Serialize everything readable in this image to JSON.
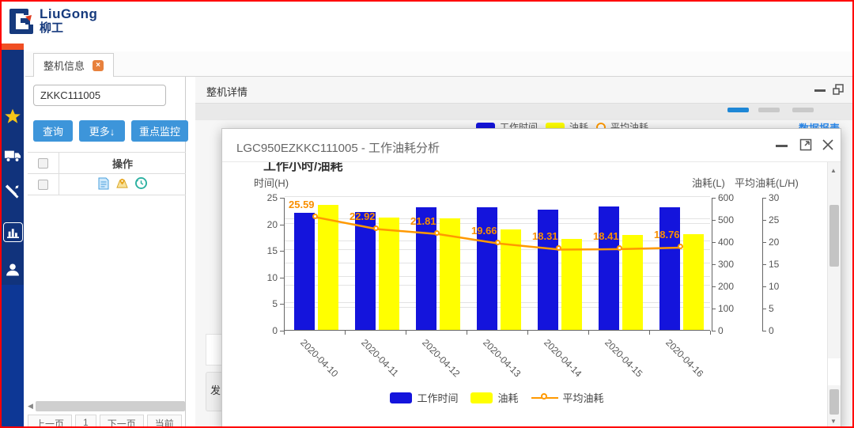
{
  "app": {
    "logo_en": "LiuGong",
    "logo_cn": "柳工"
  },
  "sidebar": {
    "icons": [
      "favorites-star",
      "fleet-truck",
      "service-wrench",
      "reports-chart",
      "customer-user"
    ],
    "active": "reports-chart"
  },
  "left_panel": {
    "tab_label": "整机信息",
    "search_value": "ZKKC111005",
    "buttons": {
      "query": "查询",
      "more": "更多↓",
      "monitor": "重点监控"
    },
    "table": {
      "op_header": "操作",
      "row_icons": [
        "document",
        "map-location",
        "history-clock"
      ]
    },
    "pagination": {
      "prev": "上一页",
      "page": "1",
      "next": "下一页",
      "current": "当前"
    }
  },
  "detail_panel": {
    "title": "整机详情",
    "legend": [
      "工作时间",
      "油耗",
      "平均油耗"
    ],
    "report_link": "数据报表",
    "section_stub": "发"
  },
  "modal": {
    "title": "LGC950EZKKC111005 - 工作油耗分析",
    "controls": [
      "minimize",
      "maximize",
      "close"
    ]
  },
  "colors": {
    "accent_orange": "#f04e23",
    "button_blue": "#3d95da",
    "bar_blue": "#1414dc",
    "bar_yellow": "#ffff00",
    "line_orange": "#ff9900",
    "link_blue": "#2d8cf0",
    "sidebar_navy": "#11337c",
    "sidebar_blue": "#0d3795"
  },
  "chart_data": {
    "type": "bar",
    "title": "工作小时/油耗",
    "categories": [
      "2020-04-10",
      "2020-04-11",
      "2020-04-12",
      "2020-04-13",
      "2020-04-14",
      "2020-04-15",
      "2020-04-16"
    ],
    "series": [
      {
        "name": "工作时间",
        "type": "bar",
        "axis": "left",
        "unit": "H",
        "color": "#1414dc",
        "values": [
          22.1,
          22.2,
          23.1,
          23.0,
          22.6,
          23.2,
          23.0
        ]
      },
      {
        "name": "油耗",
        "type": "bar",
        "axis": "right1",
        "unit": "L",
        "color": "#ffff00",
        "values": [
          566,
          508,
          503,
          452,
          412,
          427,
          432
        ]
      },
      {
        "name": "平均油耗",
        "type": "line",
        "axis": "right2",
        "unit": "L/H",
        "color": "#ff9900",
        "values": [
          25.59,
          22.92,
          21.81,
          19.66,
          18.31,
          18.41,
          18.76
        ],
        "labels_shown": true
      }
    ],
    "axes": {
      "left": {
        "label": "时间(H)",
        "min": 0,
        "max": 25,
        "ticks": [
          0,
          5,
          10,
          15,
          20,
          25
        ]
      },
      "right1": {
        "label": "油耗(L)",
        "min": 0,
        "max": 600,
        "ticks": [
          0,
          100,
          200,
          300,
          400,
          500,
          600
        ]
      },
      "right2": {
        "label": "平均油耗(L/H)",
        "min": 0,
        "max": 30,
        "ticks": [
          0,
          5,
          10,
          15,
          20,
          25,
          30
        ]
      }
    },
    "legend_position": "bottom",
    "grid": true
  }
}
